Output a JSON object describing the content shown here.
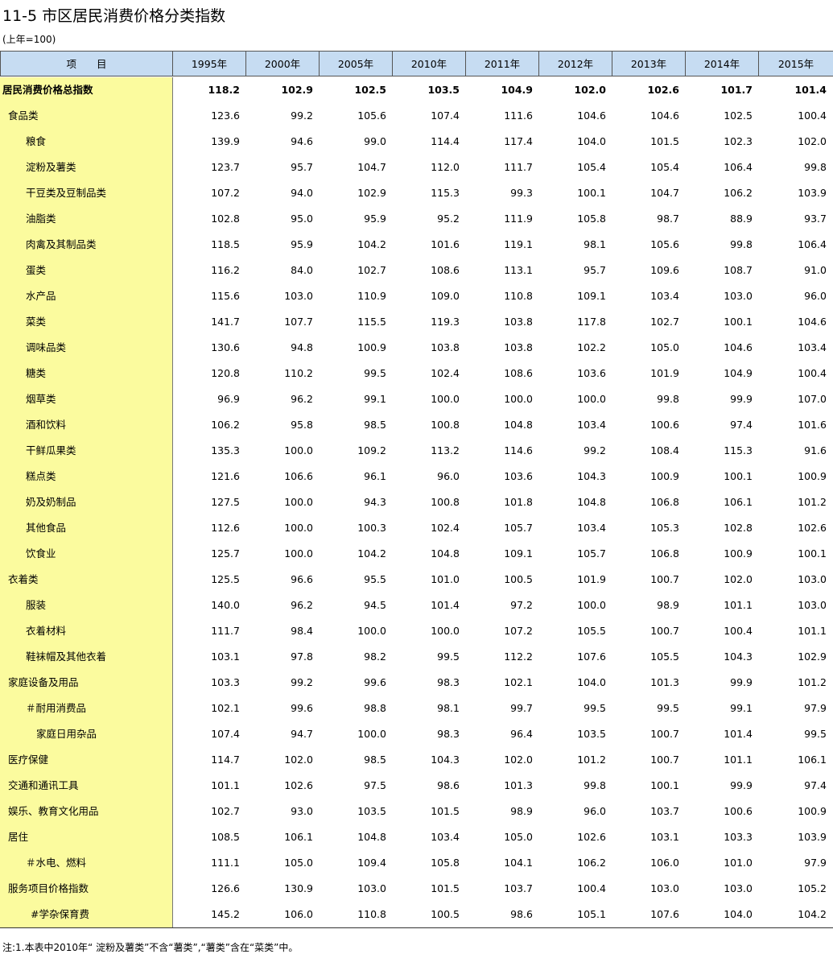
{
  "header": {
    "title": "11-5 市区居民消费价格分类指数",
    "subtitle": "(上年=100)"
  },
  "table": {
    "columns": [
      "项　　目",
      "1995年",
      "2000年",
      "2005年",
      "2010年",
      "2011年",
      "2012年",
      "2013年",
      "2014年",
      "2015年"
    ],
    "rows": [
      [
        "居民消费价格总指数",
        "118.2",
        "102.9",
        "102.5",
        "103.5",
        "104.9",
        "102.0",
        "102.6",
        "101.7",
        "101.4"
      ],
      [
        "食品类",
        "123.6",
        "99.2",
        "105.6",
        "107.4",
        "111.6",
        "104.6",
        "104.6",
        "102.5",
        "100.4"
      ],
      [
        "粮食",
        "139.9",
        "94.6",
        "99.0",
        "114.4",
        "117.4",
        "104.0",
        "101.5",
        "102.3",
        "102.0"
      ],
      [
        "淀粉及薯类",
        "123.7",
        "95.7",
        "104.7",
        "112.0",
        "111.7",
        "105.4",
        "105.4",
        "106.4",
        "99.8"
      ],
      [
        "干豆类及豆制品类",
        "107.2",
        "94.0",
        "102.9",
        "115.3",
        "99.3",
        "100.1",
        "104.7",
        "106.2",
        "103.9"
      ],
      [
        "油脂类",
        "102.8",
        "95.0",
        "95.9",
        "95.2",
        "111.9",
        "105.8",
        "98.7",
        "88.9",
        "93.7"
      ],
      [
        "肉禽及其制品类",
        "118.5",
        "95.9",
        "104.2",
        "101.6",
        "119.1",
        "98.1",
        "105.6",
        "99.8",
        "106.4"
      ],
      [
        "蛋类",
        "116.2",
        "84.0",
        "102.7",
        "108.6",
        "113.1",
        "95.7",
        "109.6",
        "108.7",
        "91.0"
      ],
      [
        "水产品",
        "115.6",
        "103.0",
        "110.9",
        "109.0",
        "110.8",
        "109.1",
        "103.4",
        "103.0",
        "96.0"
      ],
      [
        "菜类",
        "141.7",
        "107.7",
        "115.5",
        "119.3",
        "103.8",
        "117.8",
        "102.7",
        "100.1",
        "104.6"
      ],
      [
        "调味品类",
        "130.6",
        "94.8",
        "100.9",
        "103.8",
        "103.8",
        "102.2",
        "105.0",
        "104.6",
        "103.4"
      ],
      [
        "糖类",
        "120.8",
        "110.2",
        "99.5",
        "102.4",
        "108.6",
        "103.6",
        "101.9",
        "104.9",
        "100.4"
      ],
      [
        "烟草类",
        "96.9",
        "96.2",
        "99.1",
        "100.0",
        "100.0",
        "100.0",
        "99.8",
        "99.9",
        "107.0"
      ],
      [
        "酒和饮料",
        "106.2",
        "95.8",
        "98.5",
        "100.8",
        "104.8",
        "103.4",
        "100.6",
        "97.4",
        "101.6"
      ],
      [
        "干鲜瓜果类",
        "135.3",
        "100.0",
        "109.2",
        "113.2",
        "114.6",
        "99.2",
        "108.4",
        "115.3",
        "91.6"
      ],
      [
        "糕点类",
        "121.6",
        "106.6",
        "96.1",
        "96.0",
        "103.6",
        "104.3",
        "100.9",
        "100.1",
        "100.9"
      ],
      [
        "奶及奶制品",
        "127.5",
        "100.0",
        "94.3",
        "100.8",
        "101.8",
        "104.8",
        "106.8",
        "106.1",
        "101.2"
      ],
      [
        "其他食品",
        "112.6",
        "100.0",
        "100.3",
        "102.4",
        "105.7",
        "103.4",
        "105.3",
        "102.8",
        "102.6"
      ],
      [
        "饮食业",
        "125.7",
        "100.0",
        "104.2",
        "104.8",
        "109.1",
        "105.7",
        "106.8",
        "100.9",
        "100.1"
      ],
      [
        "衣着类",
        "125.5",
        "96.6",
        "95.5",
        "101.0",
        "100.5",
        "101.9",
        "100.7",
        "102.0",
        "103.0"
      ],
      [
        "服装",
        "140.0",
        "96.2",
        "94.5",
        "101.4",
        "97.2",
        "100.0",
        "98.9",
        "101.1",
        "103.0"
      ],
      [
        "衣着材料",
        "111.7",
        "98.4",
        "100.0",
        "100.0",
        "107.2",
        "105.5",
        "100.7",
        "100.4",
        "101.1"
      ],
      [
        "鞋袜帽及其他衣着",
        "103.1",
        "97.8",
        "98.2",
        "99.5",
        "112.2",
        "107.6",
        "105.5",
        "104.3",
        "102.9"
      ],
      [
        "家庭设备及用品",
        "103.3",
        "99.2",
        "99.6",
        "98.3",
        "102.1",
        "104.0",
        "101.3",
        "99.9",
        "101.2"
      ],
      [
        "＃耐用消费品",
        "102.1",
        "99.6",
        "98.8",
        "98.1",
        "99.7",
        "99.5",
        "99.5",
        "99.1",
        "97.9"
      ],
      [
        "家庭日用杂品",
        "107.4",
        "94.7",
        "100.0",
        "98.3",
        "96.4",
        "103.5",
        "100.7",
        "101.4",
        "99.5"
      ],
      [
        "医疗保健",
        "114.7",
        "102.0",
        "98.5",
        "104.3",
        "102.0",
        "101.2",
        "100.7",
        "101.1",
        "106.1"
      ],
      [
        "交通和通讯工具",
        "101.1",
        "102.6",
        "97.5",
        "98.6",
        "101.3",
        "99.8",
        "100.1",
        "99.9",
        "97.4"
      ],
      [
        "娱乐、教育文化用品",
        "102.7",
        "93.0",
        "103.5",
        "101.5",
        "98.9",
        "96.0",
        "103.7",
        "100.6",
        "100.9"
      ],
      [
        "居住",
        "108.5",
        "106.1",
        "104.8",
        "103.4",
        "105.0",
        "102.6",
        "103.1",
        "103.3",
        "103.9"
      ],
      [
        "＃水电、燃料",
        "111.1",
        "105.0",
        "109.4",
        "105.8",
        "104.1",
        "106.2",
        "106.0",
        "101.0",
        "97.9"
      ],
      [
        "服务项目价格指数",
        "126.6",
        "130.9",
        "103.0",
        "101.5",
        "103.7",
        "100.4",
        "103.0",
        "103.0",
        "105.2"
      ],
      [
        "#学杂保育费",
        "145.2",
        "106.0",
        "110.8",
        "100.5",
        "98.6",
        "105.1",
        "107.6",
        "104.0",
        "104.2"
      ]
    ]
  },
  "footnote": "注:1.本表中2010年“ 淀粉及薯类”不含“薯类”,“薯类”含在“菜类”中。"
}
